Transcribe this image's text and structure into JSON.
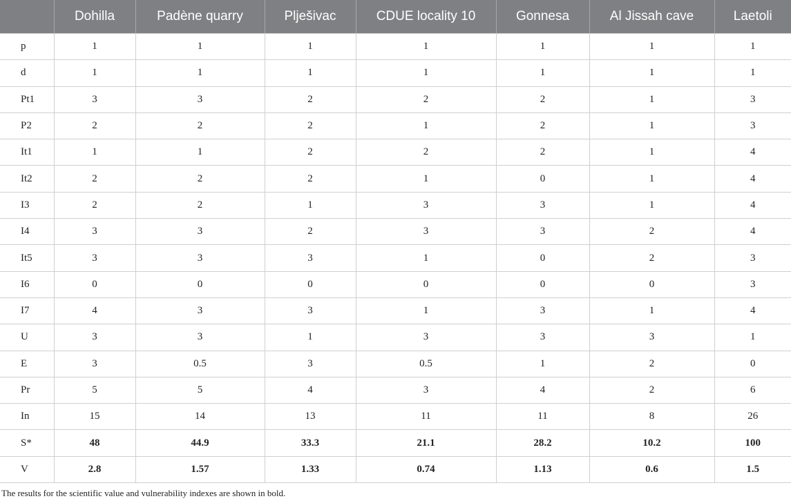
{
  "table": {
    "headers": [
      "",
      "Dohilla",
      "Padène quarry",
      "Plješivac",
      "CDUE locality 10",
      "Gonnesa",
      "Al Jissah cave",
      "Laetoli"
    ],
    "rows": [
      {
        "label": "p",
        "values": [
          "1",
          "1",
          "1",
          "1",
          "1",
          "1",
          "1"
        ]
      },
      {
        "label": "d",
        "values": [
          "1",
          "1",
          "1",
          "1",
          "1",
          "1",
          "1"
        ]
      },
      {
        "label": "Pt1",
        "values": [
          "3",
          "3",
          "2",
          "2",
          "2",
          "1",
          "3"
        ]
      },
      {
        "label": "P2",
        "values": [
          "2",
          "2",
          "2",
          "1",
          "2",
          "1",
          "3"
        ]
      },
      {
        "label": "It1",
        "values": [
          "1",
          "1",
          "2",
          "2",
          "2",
          "1",
          "4"
        ]
      },
      {
        "label": "It2",
        "values": [
          "2",
          "2",
          "2",
          "1",
          "0",
          "1",
          "4"
        ]
      },
      {
        "label": "I3",
        "values": [
          "2",
          "2",
          "1",
          "3",
          "3",
          "1",
          "4"
        ]
      },
      {
        "label": "I4",
        "values": [
          "3",
          "3",
          "2",
          "3",
          "3",
          "2",
          "4"
        ]
      },
      {
        "label": "It5",
        "values": [
          "3",
          "3",
          "3",
          "1",
          "0",
          "2",
          "3"
        ]
      },
      {
        "label": "I6",
        "values": [
          "0",
          "0",
          "0",
          "0",
          "0",
          "0",
          "3"
        ]
      },
      {
        "label": "I7",
        "values": [
          "4",
          "3",
          "3",
          "1",
          "3",
          "1",
          "4"
        ]
      },
      {
        "label": "U",
        "values": [
          "3",
          "3",
          "1",
          "3",
          "3",
          "3",
          "1"
        ]
      },
      {
        "label": "E",
        "values": [
          "3",
          "0.5",
          "3",
          "0.5",
          "1",
          "2",
          "0"
        ]
      },
      {
        "label": "Pr",
        "values": [
          "5",
          "5",
          "4",
          "3",
          "4",
          "2",
          "6"
        ]
      },
      {
        "label": "In",
        "values": [
          "15",
          "14",
          "13",
          "11",
          "11",
          "8",
          "26"
        ]
      },
      {
        "label": "S*",
        "values": [
          "48",
          "44.9",
          "33.3",
          "21.1",
          "28.2",
          "10.2",
          "100"
        ],
        "bold": true
      },
      {
        "label": "V",
        "values": [
          "2.8",
          "1.57",
          "1.33",
          "0.74",
          "1.13",
          "0.6",
          "1.5"
        ],
        "bold": true
      }
    ]
  },
  "footnote": "The results for the scientific value and vulnerability indexes are shown in bold."
}
